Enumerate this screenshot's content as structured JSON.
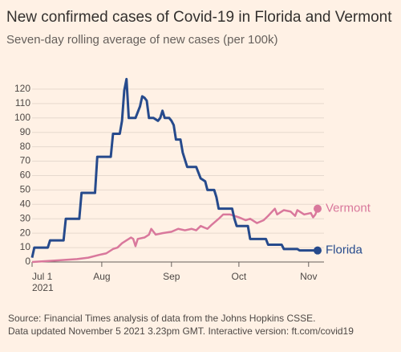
{
  "chart_data": {
    "type": "line",
    "title": "New confirmed cases of Covid-19 in Florida and Vermont",
    "subtitle": "Seven-day rolling average of new cases (per 100k)",
    "source": "Source: Financial Times analysis of data from the Johns Hopkins CSSE.",
    "note": "Data updated November 5 2021 3.23pm GMT. Interactive version: ft.com/covid19",
    "x_year_label": "2021",
    "xlim": [
      0,
      127
    ],
    "xticks": [
      {
        "value": 0,
        "label": "Jul 1"
      },
      {
        "value": 31,
        "label": "Aug"
      },
      {
        "value": 62,
        "label": "Sep"
      },
      {
        "value": 92,
        "label": "Oct"
      },
      {
        "value": 123,
        "label": "Nov"
      }
    ],
    "ylim": [
      0,
      130
    ],
    "yticks": [
      0,
      10,
      20,
      30,
      40,
      50,
      60,
      70,
      80,
      90,
      100,
      110,
      120
    ],
    "grid": true,
    "series": [
      {
        "name": "Florida",
        "color": "#264a8c",
        "x": [
          0,
          1,
          7,
          8,
          14,
          15,
          21,
          22,
          28,
          29,
          35,
          36,
          39,
          40,
          41,
          42,
          43,
          45,
          46,
          48,
          49,
          50,
          51,
          52,
          54,
          56,
          57,
          58,
          59,
          61,
          62,
          63,
          64,
          66,
          67,
          69,
          73,
          75,
          77,
          78,
          81,
          82,
          83,
          89,
          90,
          91,
          96,
          97,
          104,
          105,
          111,
          112,
          118,
          119,
          127
        ],
        "values": [
          3,
          10,
          10,
          15,
          15,
          30,
          30,
          48,
          48,
          73,
          73,
          89,
          89,
          98,
          119,
          127,
          100,
          100,
          100,
          108,
          115,
          114,
          112,
          100,
          100,
          98,
          100,
          105,
          100,
          100,
          98,
          95,
          85,
          85,
          76,
          66,
          66,
          58,
          56,
          50,
          50,
          45,
          37,
          37,
          30,
          25,
          25,
          16,
          16,
          12,
          12,
          9,
          9,
          8,
          8
        ]
      },
      {
        "name": "Vermont",
        "color": "#d9789c",
        "x": [
          0,
          10,
          20,
          25,
          30,
          33,
          36,
          38,
          40,
          42,
          44,
          45,
          46,
          47,
          50,
          52,
          53,
          55,
          58,
          62,
          65,
          68,
          71,
          73,
          75,
          78,
          80,
          83,
          85,
          88,
          92,
          95,
          97,
          100,
          103,
          105,
          108,
          109,
          112,
          115,
          117,
          118,
          121,
          124,
          125,
          126,
          127
        ],
        "values": [
          0,
          1,
          2,
          3,
          5,
          6,
          9,
          10,
          13,
          15,
          17,
          16,
          11,
          16,
          17,
          19,
          23,
          19,
          20,
          21,
          23,
          22,
          23,
          22,
          25,
          23,
          26,
          30,
          33,
          33,
          31,
          29,
          30,
          27,
          29,
          32,
          37,
          33,
          36,
          35,
          32,
          36,
          33,
          34,
          31,
          33,
          37
        ]
      }
    ]
  }
}
